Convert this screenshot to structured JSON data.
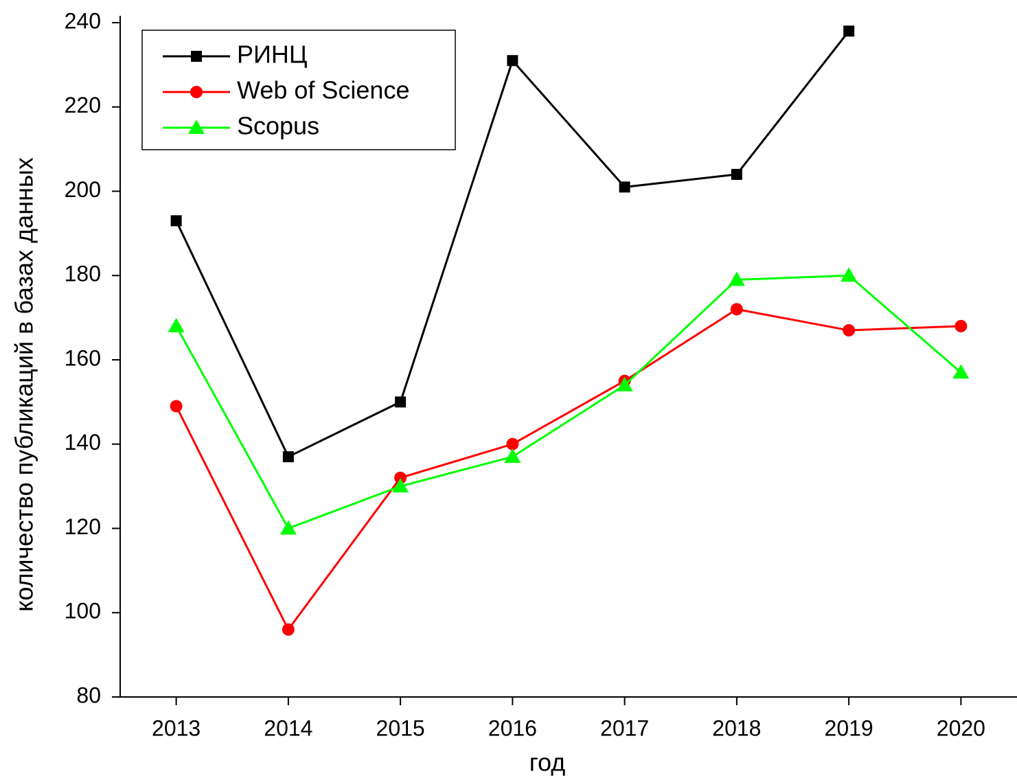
{
  "chart_data": {
    "type": "line",
    "x": [
      2013,
      2014,
      2015,
      2016,
      2017,
      2018,
      2019,
      2020
    ],
    "xlabel": "год",
    "ylabel": "количество публикаций в базах данных",
    "series": [
      {
        "name": "РИНЦ",
        "color": "#000000",
        "marker": "square",
        "values": [
          193,
          137,
          150,
          231,
          201,
          204,
          238,
          null
        ]
      },
      {
        "name": "Web of Science",
        "color": "#ff0000",
        "marker": "circle",
        "values": [
          149,
          96,
          132,
          140,
          155,
          172,
          167,
          168
        ]
      },
      {
        "name": "Scopus",
        "color": "#00ff00",
        "marker": "triangle",
        "values": [
          168,
          120,
          130,
          137,
          154,
          179,
          180,
          157
        ]
      }
    ],
    "xlim": [
      2012.5,
      2020.5
    ],
    "xticks": [
      2013,
      2014,
      2015,
      2016,
      2017,
      2018,
      2019,
      2020
    ],
    "ylim": [
      80,
      240
    ],
    "yticks": [
      80,
      100,
      120,
      140,
      160,
      180,
      200,
      220,
      240
    ],
    "legend": "upper left",
    "grid": false
  }
}
